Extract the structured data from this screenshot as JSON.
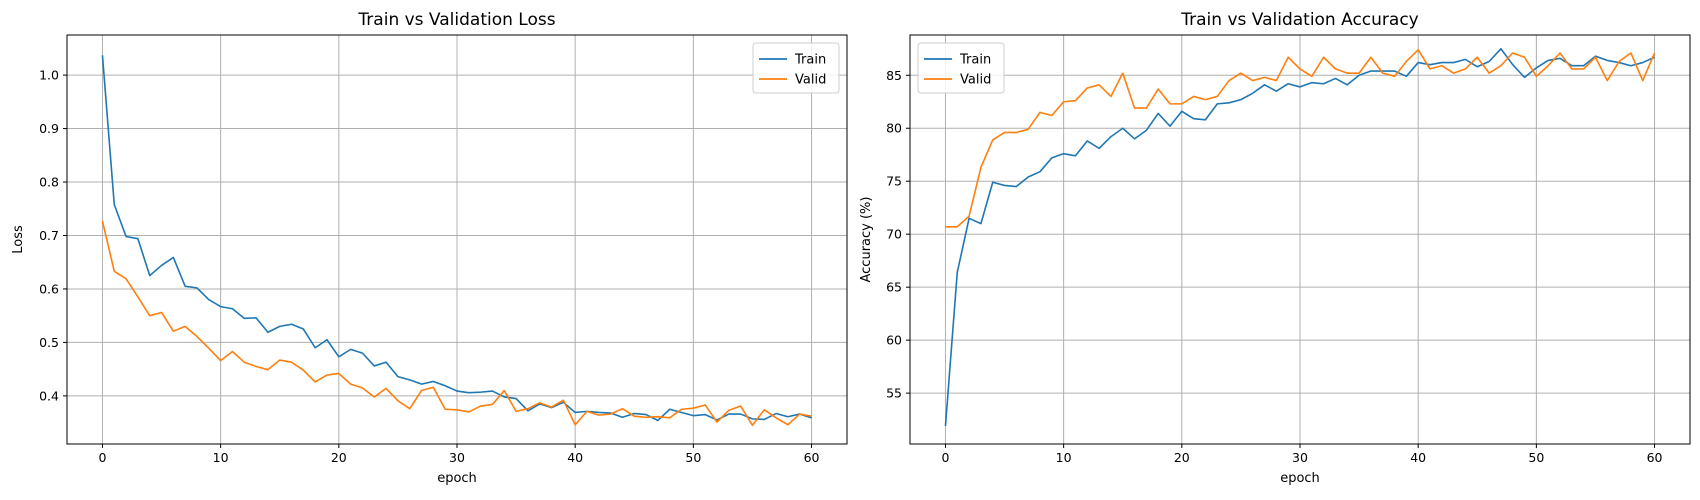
{
  "colors": {
    "train": "#1f77b4",
    "valid": "#ff7f0e",
    "grid": "#b0b0b0",
    "axes": "#000000"
  },
  "chart_data": [
    {
      "type": "line",
      "title": "Train vs Validation Loss",
      "xlabel": "epoch",
      "ylabel": "Loss",
      "xlim": [
        -3,
        63
      ],
      "ylim": [
        0.31,
        1.075
      ],
      "xticks": [
        0,
        10,
        20,
        30,
        40,
        50,
        60
      ],
      "yticks": [
        0.4,
        0.5,
        0.6,
        0.7,
        0.8,
        0.9,
        1.0
      ],
      "ytick_labels": [
        "0.4",
        "0.5",
        "0.6",
        "0.7",
        "0.8",
        "0.9",
        "1.0"
      ],
      "grid": true,
      "legend": "top-right",
      "x": [
        0,
        1,
        2,
        3,
        4,
        5,
        6,
        7,
        8,
        9,
        10,
        11,
        12,
        13,
        14,
        15,
        16,
        17,
        18,
        19,
        20,
        21,
        22,
        23,
        24,
        25,
        26,
        27,
        28,
        29,
        30,
        31,
        32,
        33,
        34,
        35,
        36,
        37,
        38,
        39,
        40,
        41,
        42,
        43,
        44,
        45,
        46,
        47,
        48,
        49,
        50,
        51,
        52,
        53,
        54,
        55,
        56,
        57,
        58,
        59,
        60
      ],
      "series": [
        {
          "name": "Train",
          "color_key": "train",
          "values": [
            1.037,
            0.758,
            0.698,
            0.694,
            0.625,
            0.644,
            0.659,
            0.605,
            0.602,
            0.58,
            0.567,
            0.563,
            0.545,
            0.546,
            0.519,
            0.53,
            0.534,
            0.525,
            0.49,
            0.505,
            0.473,
            0.487,
            0.48,
            0.456,
            0.463,
            0.436,
            0.43,
            0.422,
            0.427,
            0.419,
            0.409,
            0.406,
            0.407,
            0.409,
            0.398,
            0.395,
            0.372,
            0.385,
            0.378,
            0.388,
            0.369,
            0.371,
            0.369,
            0.368,
            0.36,
            0.367,
            0.365,
            0.354,
            0.375,
            0.369,
            0.363,
            0.365,
            0.355,
            0.366,
            0.366,
            0.357,
            0.356,
            0.367,
            0.361,
            0.366,
            0.359
          ]
        },
        {
          "name": "Valid",
          "color_key": "valid",
          "values": [
            0.727,
            0.633,
            0.619,
            0.585,
            0.55,
            0.556,
            0.521,
            0.53,
            0.511,
            0.489,
            0.466,
            0.483,
            0.463,
            0.455,
            0.449,
            0.467,
            0.463,
            0.448,
            0.426,
            0.439,
            0.442,
            0.422,
            0.415,
            0.398,
            0.414,
            0.391,
            0.376,
            0.41,
            0.416,
            0.375,
            0.374,
            0.37,
            0.381,
            0.384,
            0.41,
            0.371,
            0.376,
            0.387,
            0.379,
            0.392,
            0.346,
            0.371,
            0.364,
            0.366,
            0.376,
            0.362,
            0.36,
            0.361,
            0.359,
            0.375,
            0.377,
            0.383,
            0.351,
            0.373,
            0.381,
            0.345,
            0.374,
            0.359,
            0.346,
            0.366,
            0.362
          ]
        }
      ]
    },
    {
      "type": "line",
      "title": "Train vs Validation Accuracy",
      "xlabel": "epoch",
      "ylabel": "Accuracy (%)",
      "xlim": [
        -3,
        63
      ],
      "ylim": [
        50.2,
        88.8
      ],
      "xticks": [
        0,
        10,
        20,
        30,
        40,
        50,
        60
      ],
      "yticks": [
        55,
        60,
        65,
        70,
        75,
        80,
        85
      ],
      "ytick_labels": [
        "55",
        "60",
        "65",
        "70",
        "75",
        "80",
        "85"
      ],
      "grid": true,
      "legend": "top-left",
      "x": [
        0,
        1,
        2,
        3,
        4,
        5,
        6,
        7,
        8,
        9,
        10,
        11,
        12,
        13,
        14,
        15,
        16,
        17,
        18,
        19,
        20,
        21,
        22,
        23,
        24,
        25,
        26,
        27,
        28,
        29,
        30,
        31,
        32,
        33,
        34,
        35,
        36,
        37,
        38,
        39,
        40,
        41,
        42,
        43,
        44,
        45,
        46,
        47,
        48,
        49,
        50,
        51,
        52,
        53,
        54,
        55,
        56,
        57,
        58,
        59,
        60
      ],
      "series": [
        {
          "name": "Train",
          "color_key": "train",
          "values": [
            51.9,
            66.4,
            71.5,
            71.0,
            74.9,
            74.6,
            74.5,
            75.4,
            75.9,
            77.2,
            77.6,
            77.4,
            78.8,
            78.1,
            79.2,
            80.0,
            79.0,
            79.8,
            81.4,
            80.2,
            81.6,
            80.9,
            80.8,
            82.3,
            82.4,
            82.7,
            83.3,
            84.1,
            83.5,
            84.2,
            83.9,
            84.3,
            84.2,
            84.7,
            84.1,
            85.0,
            85.4,
            85.4,
            85.4,
            84.9,
            86.2,
            86.0,
            86.2,
            86.2,
            86.5,
            85.8,
            86.3,
            87.5,
            86.0,
            84.8,
            85.7,
            86.4,
            86.6,
            85.9,
            85.9,
            86.8,
            86.4,
            86.2,
            85.9,
            86.2,
            86.7
          ]
        },
        {
          "name": "Valid",
          "color_key": "valid",
          "values": [
            70.7,
            70.7,
            71.7,
            76.3,
            78.9,
            79.6,
            79.6,
            79.9,
            81.5,
            81.2,
            82.5,
            82.6,
            83.8,
            84.1,
            83.0,
            85.2,
            81.9,
            81.9,
            83.7,
            82.3,
            82.3,
            83.0,
            82.7,
            83.0,
            84.5,
            85.2,
            84.5,
            84.8,
            84.5,
            86.7,
            85.6,
            84.9,
            86.7,
            85.6,
            85.2,
            85.2,
            86.7,
            85.2,
            84.9,
            86.3,
            87.4,
            85.6,
            85.9,
            85.2,
            85.6,
            86.7,
            85.2,
            85.9,
            87.1,
            86.7,
            84.9,
            85.9,
            87.1,
            85.6,
            85.6,
            86.7,
            84.5,
            86.3,
            87.1,
            84.5,
            87.1
          ]
        }
      ]
    }
  ]
}
